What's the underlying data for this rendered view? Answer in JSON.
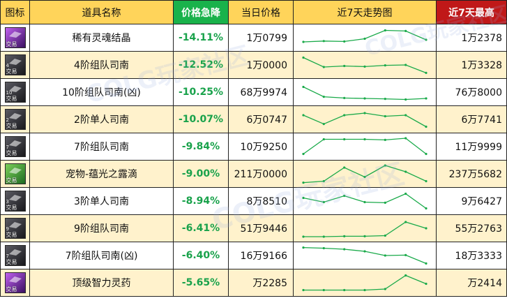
{
  "headers": {
    "icon": "图标",
    "name": "道具名称",
    "drop": "价格急降",
    "price": "当日价格",
    "trend": "近7天走势图",
    "max": "近7天最高"
  },
  "icon_tag": "交易",
  "rows": [
    {
      "icon": "soul-crystal-icon",
      "icon_style": "purple",
      "level": "",
      "name": "稀有灵魂结晶",
      "drop": "-14.11%",
      "price": "1万0799",
      "max": "1万2378",
      "trend": [
        0.7,
        0.66,
        0.68,
        0.55,
        0.15,
        0.18,
        0.6
      ]
    },
    {
      "icon": "compass-icon",
      "icon_style": "dark",
      "level": "4",
      "name": "4阶组队司南",
      "drop": "-12.52%",
      "price": "1万0000",
      "max": "1万3328",
      "trend": [
        0.15,
        0.6,
        0.55,
        0.58,
        0.52,
        0.5,
        0.88
      ]
    },
    {
      "icon": "compass-icon",
      "icon_style": "dark",
      "level": "10",
      "name": "10阶组队司南(凶)",
      "drop": "-10.25%",
      "price": "68万9974",
      "max": "76万8000",
      "trend": [
        0.25,
        0.72,
        0.78,
        0.8,
        0.82,
        0.85,
        0.8
      ]
    },
    {
      "icon": "compass-icon",
      "icon_style": "dark",
      "level": "2",
      "name": "2阶单人司南",
      "drop": "-10.07%",
      "price": "6万0747",
      "max": "6万7741",
      "trend": [
        0.3,
        0.72,
        0.3,
        0.2,
        0.35,
        0.3,
        0.85
      ]
    },
    {
      "icon": "compass-icon",
      "icon_style": "dark",
      "level": "7",
      "name": "7阶组队司南",
      "drop": "-9.84%",
      "price": "10万9250",
      "max": "11万9999",
      "trend": [
        0.85,
        0.15,
        0.15,
        0.15,
        0.18,
        0.1,
        0.85
      ]
    },
    {
      "icon": "dew-icon",
      "icon_style": "green",
      "level": "",
      "name": "宠物-蕴光之露滴",
      "drop": "-9.00%",
      "price": "211万0000",
      "max": "237万5682",
      "trend": [
        0.92,
        0.85,
        0.2,
        0.65,
        0.1,
        0.4,
        0.85
      ]
    },
    {
      "icon": "compass-icon",
      "icon_style": "dark",
      "level": "3",
      "name": "3阶单人司南",
      "drop": "-8.94%",
      "price": "8万8510",
      "max": "9万6427",
      "trend": [
        0.35,
        0.55,
        0.25,
        0.55,
        0.58,
        0.15,
        0.85
      ]
    },
    {
      "icon": "compass-icon",
      "icon_style": "dark",
      "level": "9",
      "name": "9阶组队司南",
      "drop": "-6.41%",
      "price": "51万9446",
      "max": "55万2763",
      "trend": [
        0.9,
        0.9,
        0.88,
        0.88,
        0.85,
        0.2,
        0.5
      ]
    },
    {
      "icon": "compass-icon",
      "icon_style": "dark",
      "level": "7",
      "name": "7阶组队司南(凶)",
      "drop": "-6.40%",
      "price": "16万9166",
      "max": "18万3333",
      "trend": [
        0.12,
        0.15,
        0.2,
        0.3,
        0.5,
        0.48,
        0.88
      ]
    },
    {
      "icon": "elixir-icon",
      "icon_style": "purple",
      "level": "",
      "name": "顶级智力灵药",
      "drop": "-5.65%",
      "price": "万2285",
      "max": "万2414",
      "trend": [
        0.85,
        0.85,
        0.85,
        0.85,
        0.8,
        0.15,
        0.55
      ]
    }
  ],
  "watermarks": [
    "COLG玩家社区",
    "COLG玩家社区",
    "COLG玩家社区"
  ]
}
